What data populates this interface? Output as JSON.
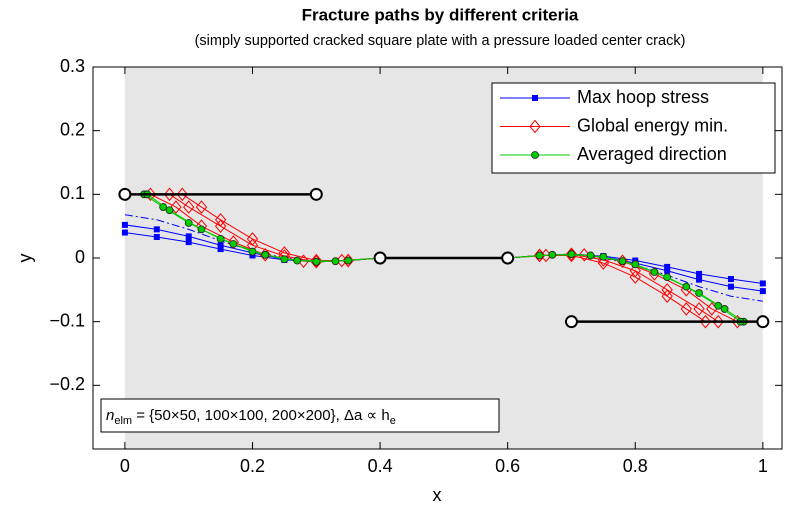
{
  "chart_data": {
    "type": "line",
    "title": "Fracture paths by different criteria",
    "subtitle": "(simply supported cracked square plate with a pressure loaded center crack)",
    "xlabel": "x",
    "ylabel": "y",
    "xlim": [
      -0.05,
      1.03
    ],
    "ylim": [
      -0.3,
      0.3
    ],
    "xticks": [
      0,
      0.2,
      0.4,
      0.6,
      0.8,
      1
    ],
    "yticks": [
      0.3,
      0.2,
      0.1,
      0,
      -0.1,
      -0.2
    ],
    "shaded_region": {
      "x": [
        0,
        1
      ],
      "color": "#e6e6e6"
    },
    "legend": "upper right",
    "annotation": {
      "symbol": "n",
      "subscript": "elm",
      "text": " = {50×50, 100×100, 200×200}, Δa ∝ h",
      "subscript2": "e"
    },
    "series": [
      {
        "name": "Max hoop stress",
        "color": "#0000ff",
        "marker": "square",
        "linestyle": "solid",
        "x": [
          0,
          0.05,
          0.1,
          0.15,
          0.2,
          0.25,
          0.3,
          0.35,
          0.4,
          null,
          0.6,
          0.65,
          0.7,
          0.75,
          0.8,
          0.85,
          0.9,
          0.95,
          1
        ],
        "values": [
          0.04,
          0.033,
          0.025,
          0.014,
          0.004,
          -0.003,
          -0.006,
          -0.004,
          0,
          null,
          0,
          0.004,
          0.006,
          0.003,
          -0.004,
          -0.014,
          -0.025,
          -0.033,
          -0.04
        ]
      },
      {
        "color": "#0000ff",
        "marker": "square",
        "linestyle": "solid",
        "x": [
          0,
          0.05,
          0.1,
          0.15,
          0.2,
          0.25,
          0.3,
          0.35,
          0.4,
          null,
          0.6,
          0.65,
          0.7,
          0.75,
          0.8,
          0.85,
          0.9,
          0.95,
          1
        ],
        "values": [
          0.052,
          0.045,
          0.034,
          0.02,
          0.008,
          -0.002,
          -0.006,
          -0.004,
          0,
          null,
          0,
          0.004,
          0.006,
          0.002,
          -0.008,
          -0.02,
          -0.034,
          -0.045,
          -0.052
        ]
      },
      {
        "color": "#0000ff",
        "marker": "none",
        "linestyle": "dashdot",
        "x": [
          0,
          0.05,
          0.1,
          0.15,
          0.2,
          0.25,
          0.3,
          0.35,
          0.4,
          null,
          0.6,
          0.65,
          0.7,
          0.75,
          0.8,
          0.85,
          0.9,
          0.95,
          1
        ],
        "values": [
          0.068,
          0.06,
          0.045,
          0.027,
          0.011,
          0,
          -0.005,
          -0.004,
          0,
          null,
          0,
          0.004,
          0.005,
          0,
          -0.011,
          -0.027,
          -0.045,
          -0.06,
          -0.068
        ]
      },
      {
        "name": "Global energy min.",
        "color": "#ff0000",
        "marker": "diamond",
        "linestyle": "solid",
        "x": [
          0.09,
          0.12,
          0.15,
          0.2,
          0.25,
          0.3,
          0.35,
          0.4,
          null,
          0.6,
          0.65,
          0.7,
          0.75,
          0.8,
          0.85,
          0.88,
          0.91
        ],
        "values": [
          0.1,
          0.08,
          0.06,
          0.03,
          0.008,
          -0.004,
          -0.004,
          0,
          null,
          0,
          0.004,
          0.004,
          -0.008,
          -0.03,
          -0.06,
          -0.08,
          -0.1
        ]
      },
      {
        "color": "#ff0000",
        "marker": "diamond",
        "linestyle": "solid",
        "x": [
          0.07,
          0.1,
          0.15,
          0.2,
          0.25,
          0.3,
          0.35,
          0.4,
          null,
          0.6,
          0.65,
          0.7,
          0.75,
          0.8,
          0.85,
          0.9,
          0.93
        ],
        "values": [
          0.1,
          0.08,
          0.05,
          0.02,
          0.003,
          -0.006,
          -0.004,
          0,
          null,
          0,
          0.004,
          0.006,
          -0.003,
          -0.02,
          -0.05,
          -0.08,
          -0.1
        ]
      },
      {
        "color": "#ff0000",
        "marker": "diamond",
        "linestyle": "solid",
        "x": [
          0.04,
          0.08,
          0.12,
          0.17,
          0.22,
          0.28,
          0.34,
          0.4,
          null,
          0.6,
          0.66,
          0.72,
          0.78,
          0.83,
          0.88,
          0.92,
          0.96
        ],
        "values": [
          0.1,
          0.08,
          0.05,
          0.025,
          0.005,
          -0.005,
          -0.004,
          0,
          null,
          0,
          0.004,
          0.005,
          -0.005,
          -0.025,
          -0.05,
          -0.08,
          -0.1
        ]
      },
      {
        "name": "Averaged direction",
        "color": "#00cc00",
        "marker": "circle",
        "linestyle": "solid",
        "x": [
          0.03,
          0.06,
          0.1,
          0.15,
          0.2,
          0.25,
          0.3,
          0.35,
          0.4,
          null,
          0.6,
          0.65,
          0.7,
          0.75,
          0.8,
          0.85,
          0.9,
          0.94,
          0.97
        ],
        "values": [
          0.1,
          0.08,
          0.055,
          0.03,
          0.01,
          -0.002,
          -0.006,
          -0.004,
          0,
          null,
          0,
          0.004,
          0.006,
          0.002,
          -0.01,
          -0.03,
          -0.055,
          -0.08,
          -0.1
        ]
      },
      {
        "color": "#00cc00",
        "marker": "circle",
        "linestyle": "solid",
        "x": [
          0.035,
          0.07,
          0.12,
          0.17,
          0.22,
          0.27,
          0.33,
          0.4,
          null,
          0.6,
          0.67,
          0.73,
          0.78,
          0.83,
          0.88,
          0.93,
          0.965
        ],
        "values": [
          0.1,
          0.075,
          0.045,
          0.022,
          0.005,
          -0.004,
          -0.005,
          0,
          null,
          0,
          0.005,
          0.004,
          -0.005,
          -0.022,
          -0.045,
          -0.075,
          -0.1
        ]
      }
    ],
    "cracks": [
      {
        "x": [
          0,
          0.3
        ],
        "y": [
          0.1,
          0.1
        ]
      },
      {
        "x": [
          0.4,
          0.6
        ],
        "y": [
          0,
          0
        ]
      },
      {
        "x": [
          0.7,
          1
        ],
        "y": [
          -0.1,
          -0.1
        ]
      }
    ]
  }
}
